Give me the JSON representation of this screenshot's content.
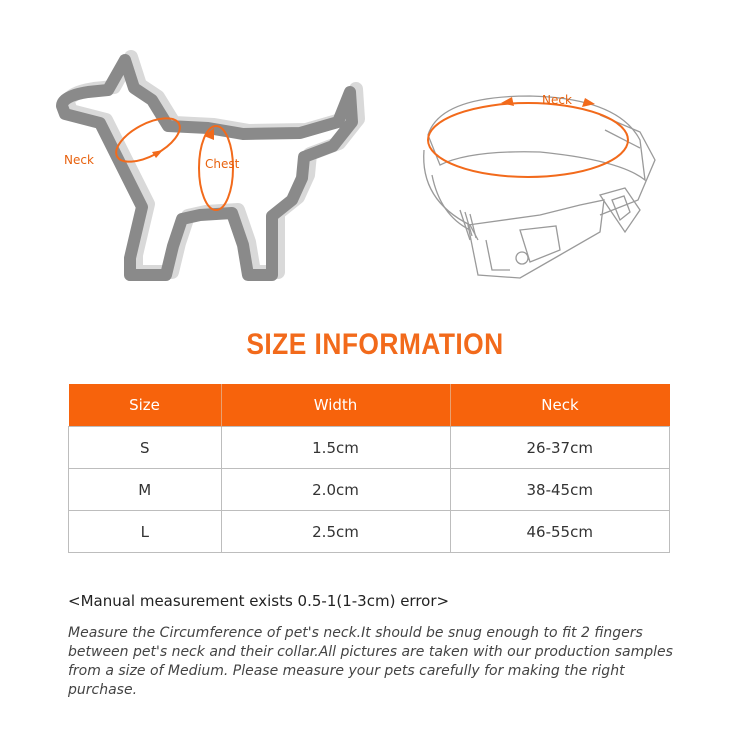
{
  "illustration": {
    "dog_neck_label": "Neck",
    "dog_chest_label": "Chest",
    "collar_neck_label": "Neck",
    "accent_color": "#f26a1b"
  },
  "title": "SIZE INFORMATION",
  "table": {
    "headers": [
      "Size",
      "Width",
      "Neck"
    ],
    "rows": [
      [
        "S",
        "1.5cm",
        "26-37cm"
      ],
      [
        "M",
        "2.0cm",
        "38-45cm"
      ],
      [
        "L",
        "2.5cm",
        "46-55cm"
      ]
    ],
    "header_color": "#f7630c"
  },
  "note": "<Manual measurement exists 0.5-1(1-3cm) error>",
  "description": "Measure the Circumference of pet's neck.It should be snug enough to fit 2 fingers between pet's neck and their collar.All pictures are taken with our production samples from a size of Medium. Please measure your pets carefully for making the right purchase."
}
